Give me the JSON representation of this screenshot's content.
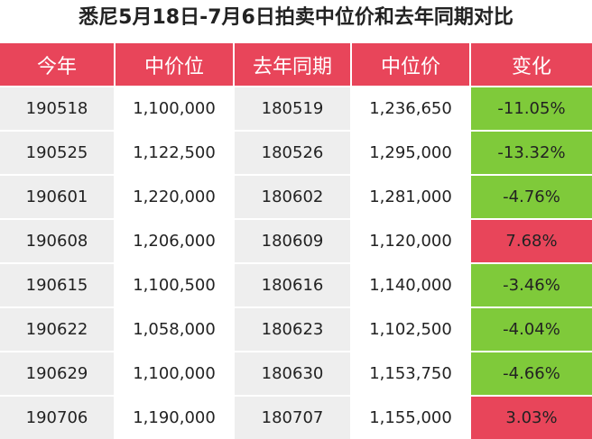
{
  "title": "悉尼5月18日-7月6日拍卖中位价和去年同期对比",
  "colors": {
    "header_bg": "#e8455a",
    "negative_change": "#7fca3a",
    "positive_change": "#e8455a",
    "zebra_gray": "#eeeeee"
  },
  "columns": [
    "今年",
    "中价位",
    "去年同期",
    "中位价",
    "变化"
  ],
  "rows": [
    {
      "this_year": "190518",
      "median": "1,100,000",
      "last_year": "180519",
      "last_median": "1,236,650",
      "change": "-11.05%"
    },
    {
      "this_year": "190525",
      "median": "1,122,500",
      "last_year": "180526",
      "last_median": "1,295,000",
      "change": "-13.32%"
    },
    {
      "this_year": "190601",
      "median": "1,220,000",
      "last_year": "180602",
      "last_median": "1,281,000",
      "change": "-4.76%"
    },
    {
      "this_year": "190608",
      "median": "1,206,000",
      "last_year": "180609",
      "last_median": "1,120,000",
      "change": "7.68%"
    },
    {
      "this_year": "190615",
      "median": "1,100,500",
      "last_year": "180616",
      "last_median": "1,140,000",
      "change": "-3.46%"
    },
    {
      "this_year": "190622",
      "median": "1,058,000",
      "last_year": "180623",
      "last_median": "1,102,500",
      "change": "-4.04%"
    },
    {
      "this_year": "190629",
      "median": "1,100,000",
      "last_year": "180630",
      "last_median": "1,153,750",
      "change": "-4.66%"
    },
    {
      "this_year": "190706",
      "median": "1,190,000",
      "last_year": "180707",
      "last_median": "1,155,000",
      "change": "3.03%"
    }
  ]
}
